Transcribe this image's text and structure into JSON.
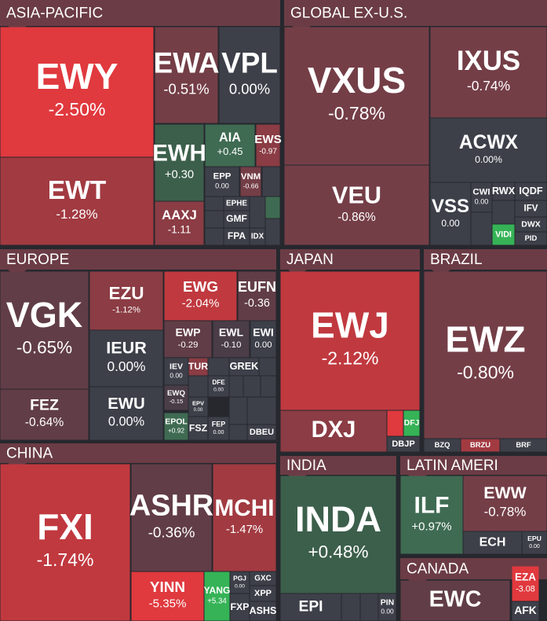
{
  "sectors": [
    {
      "title": "ASIA-PACIFIC",
      "tiles": [
        {
          "ticker": "EWY",
          "change": "-2.50%"
        },
        {
          "ticker": "EWT",
          "change": "-1.28%"
        },
        {
          "ticker": "EWA",
          "change": "-0.51%"
        },
        {
          "ticker": "VPL",
          "change": "0.00%"
        },
        {
          "ticker": "EWH",
          "change": "+0.30"
        },
        {
          "ticker": "AIA",
          "change": "+0.45"
        },
        {
          "ticker": "EWS",
          "change": "-0.97"
        },
        {
          "ticker": "EPP",
          "change": "0.00"
        },
        {
          "ticker": "VNM",
          "change": "-0.66"
        },
        {
          "ticker": "AAXJ",
          "change": "-1.11"
        },
        {
          "ticker": "EPHE"
        },
        {
          "ticker": "GMF"
        },
        {
          "ticker": "FPA"
        },
        {
          "ticker": "IDX"
        }
      ]
    },
    {
      "title": "GLOBAL EX-U.S.",
      "tiles": [
        {
          "ticker": "VXUS",
          "change": "-0.78%"
        },
        {
          "ticker": "VEU",
          "change": "-0.86%"
        },
        {
          "ticker": "IXUS",
          "change": "-0.74%"
        },
        {
          "ticker": "ACWX",
          "change": "0.00%"
        },
        {
          "ticker": "VSS",
          "change": "0.00"
        },
        {
          "ticker": "CWI",
          "change": "0.00"
        },
        {
          "ticker": "RWX"
        },
        {
          "ticker": "IQDF"
        },
        {
          "ticker": "IFV"
        },
        {
          "ticker": "DWX"
        },
        {
          "ticker": "PID"
        },
        {
          "ticker": "VIDI"
        }
      ]
    },
    {
      "title": "EUROPE",
      "tiles": [
        {
          "ticker": "VGK",
          "change": "-0.65%"
        },
        {
          "ticker": "FEZ",
          "change": "-0.64%"
        },
        {
          "ticker": "EZU",
          "change": "-1.12%"
        },
        {
          "ticker": "IEUR",
          "change": "0.00%"
        },
        {
          "ticker": "EWU",
          "change": "0.00%"
        },
        {
          "ticker": "EWG",
          "change": "-2.04%"
        },
        {
          "ticker": "EUFN",
          "change": "-0.36"
        },
        {
          "ticker": "EWP",
          "change": "-0.29"
        },
        {
          "ticker": "EWL",
          "change": "-0.10"
        },
        {
          "ticker": "EWI",
          "change": "0.00"
        },
        {
          "ticker": "IEV",
          "change": "0.00"
        },
        {
          "ticker": "TUR"
        },
        {
          "ticker": "GREK"
        },
        {
          "ticker": "DFE",
          "change": "0.00"
        },
        {
          "ticker": "EWQ",
          "change": "-0.15"
        },
        {
          "ticker": "EPV",
          "change": "0.00"
        },
        {
          "ticker": "EPOL",
          "change": "+0.92"
        },
        {
          "ticker": "FSZ"
        },
        {
          "ticker": "FEP",
          "change": "0.00"
        },
        {
          "ticker": "DBEU"
        }
      ]
    },
    {
      "title": "JAPAN",
      "tiles": [
        {
          "ticker": "EWJ",
          "change": "-2.12%"
        },
        {
          "ticker": "DXJ"
        },
        {
          "ticker": "DFJ"
        },
        {
          "ticker": "DBJP"
        }
      ]
    },
    {
      "title": "BRAZIL",
      "tiles": [
        {
          "ticker": "EWZ",
          "change": "-0.80%"
        },
        {
          "ticker": "BZQ"
        },
        {
          "ticker": "BRZU"
        },
        {
          "ticker": "BRF"
        }
      ]
    },
    {
      "title": "CHINA",
      "tiles": [
        {
          "ticker": "FXI",
          "change": "-1.74%"
        },
        {
          "ticker": "ASHR",
          "change": "-0.36%"
        },
        {
          "ticker": "MCHI",
          "change": "-1.47%"
        },
        {
          "ticker": "YINN",
          "change": "-5.35%"
        },
        {
          "ticker": "YANG",
          "change": "+5.34"
        },
        {
          "ticker": "PGJ",
          "change": "0.00"
        },
        {
          "ticker": "GXC"
        },
        {
          "ticker": "XPP"
        },
        {
          "ticker": "ASHS"
        },
        {
          "ticker": "FXP"
        }
      ]
    },
    {
      "title": "INDIA",
      "tiles": [
        {
          "ticker": "INDA",
          "change": "+0.48%"
        },
        {
          "ticker": "EPI"
        },
        {
          "ticker": "PIN",
          "change": "0.00"
        }
      ]
    },
    {
      "title": "LATIN AMERI",
      "tiles": [
        {
          "ticker": "ILF",
          "change": "+0.97%"
        },
        {
          "ticker": "EWW",
          "change": "-0.78%"
        },
        {
          "ticker": "ECH"
        },
        {
          "ticker": "EPU",
          "change": "0.00"
        }
      ]
    },
    {
      "title": "CANADA",
      "tiles": [
        {
          "ticker": "EWC"
        },
        {
          "ticker": "EZA",
          "change": "-3.08"
        },
        {
          "ticker": "AFK"
        }
      ]
    }
  ]
}
